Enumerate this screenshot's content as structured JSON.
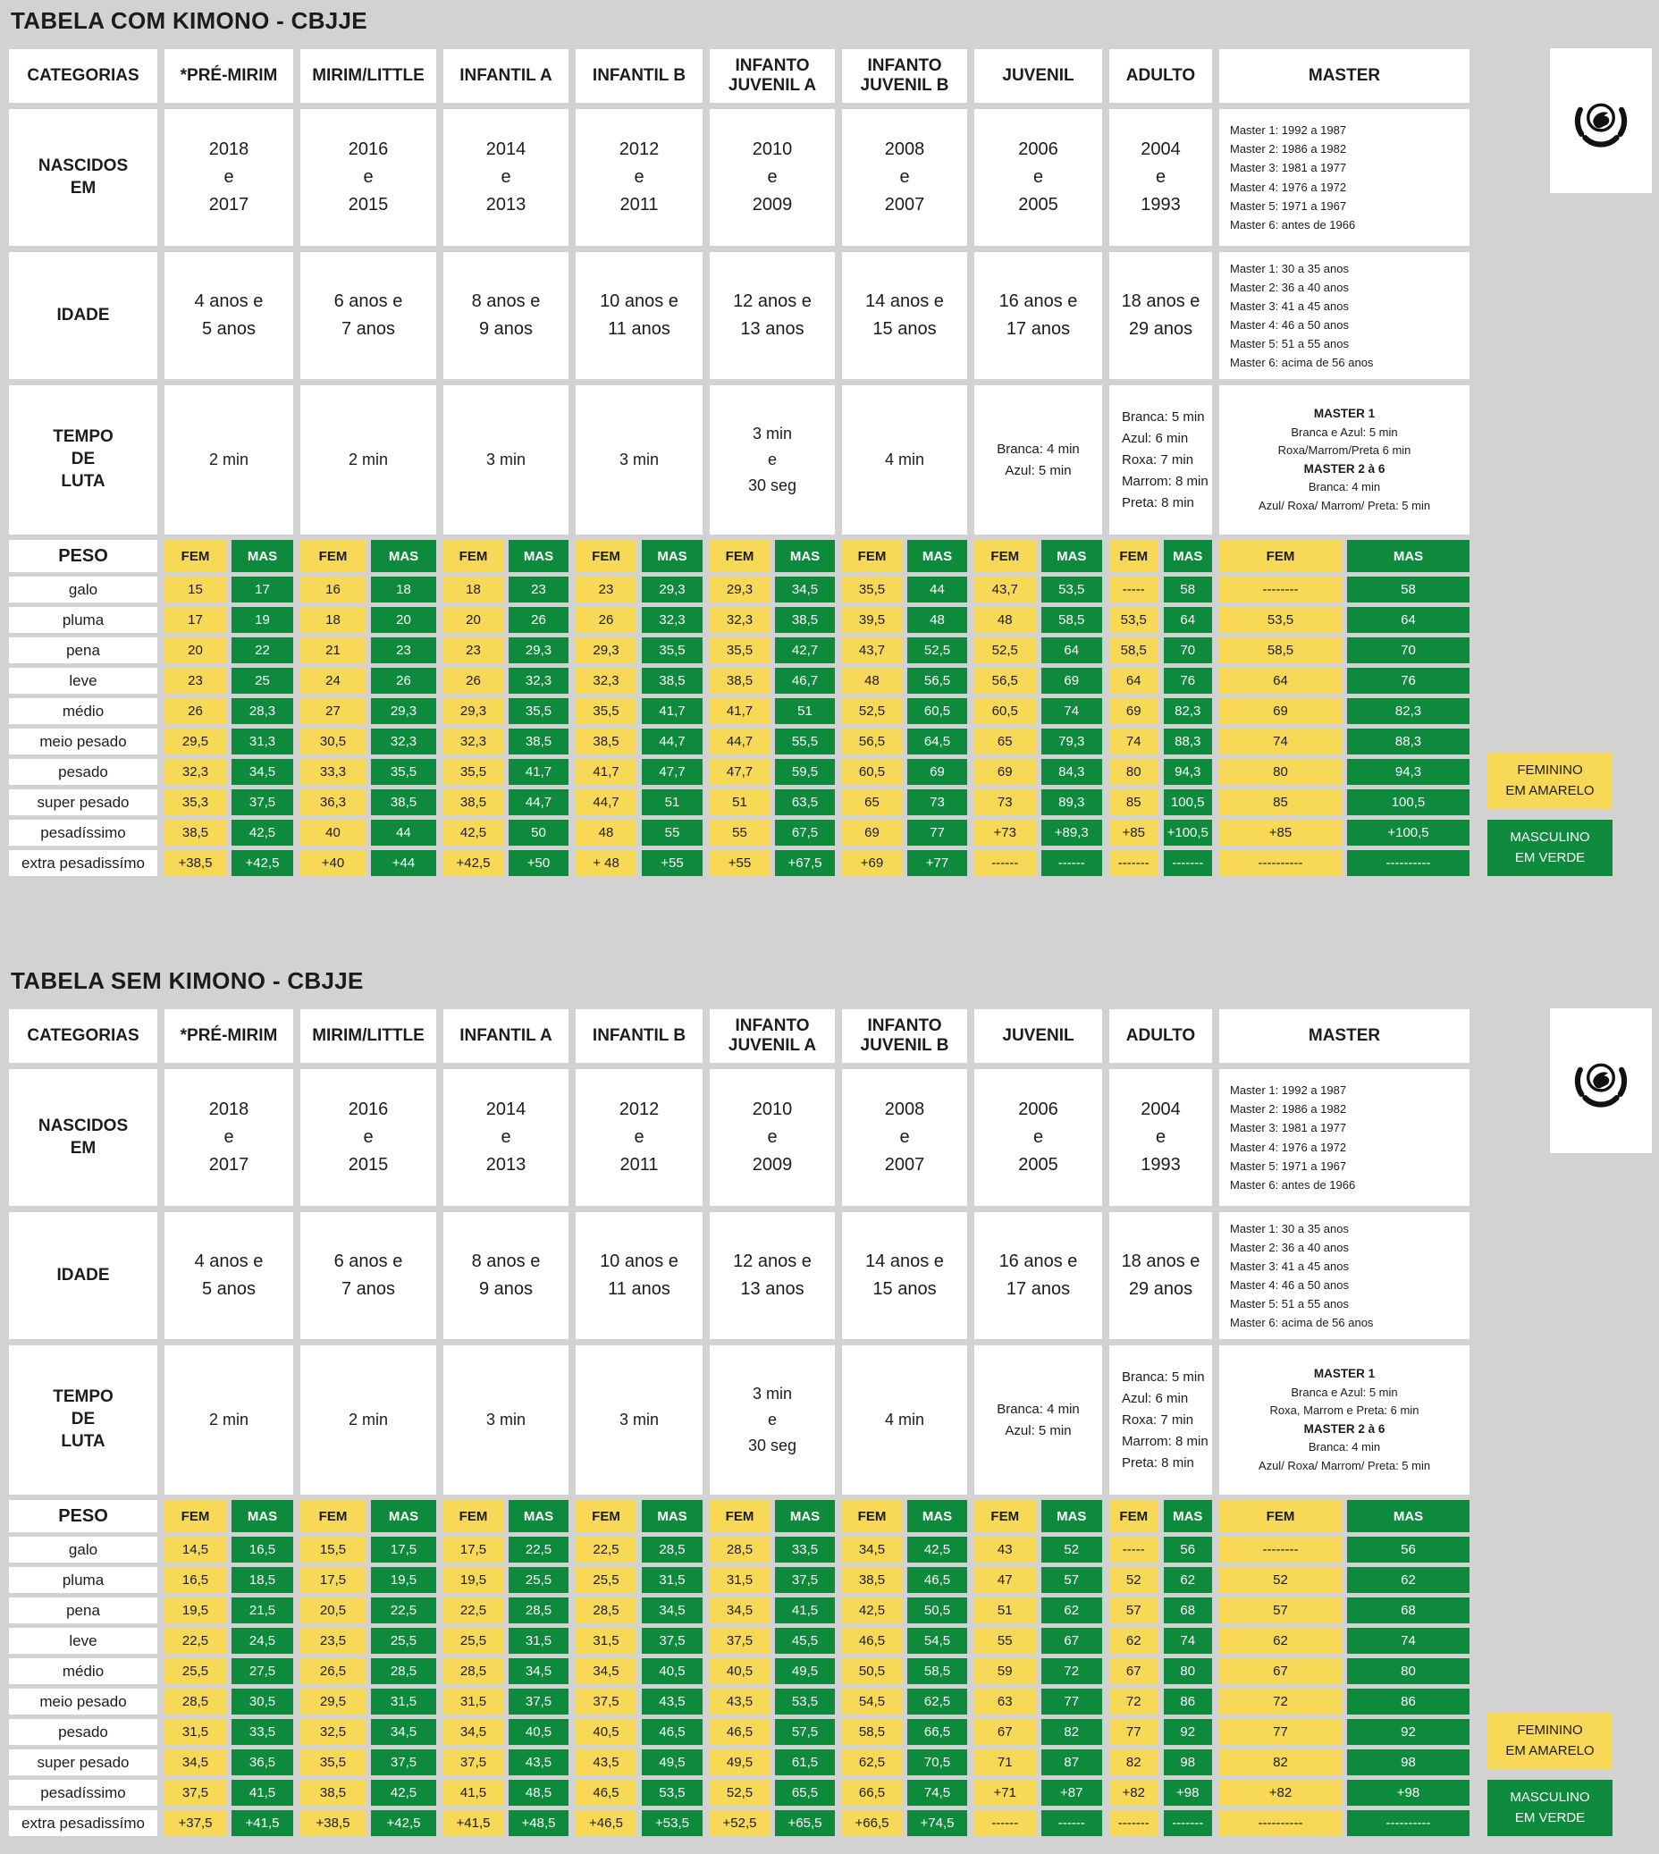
{
  "colors": {
    "background": "#d2d2d2",
    "feminine_yellow": "#f7d957",
    "masculine_green": "#0e8a3c",
    "text": "#1c1c1c",
    "cell_white": "#ffffff"
  },
  "legend": {
    "fem": [
      "FEMININO",
      "EM AMARELO"
    ],
    "mas": [
      "MASCULINO",
      "EM VERDE"
    ]
  },
  "tables": [
    {
      "title": "TABELA COM KIMONO - CBJJE",
      "corner_label": "CATEGORIAS",
      "categories": [
        "*PRÉ-MIRIM",
        "MIRIM/LITTLE",
        "INFANTIL A",
        "INFANTIL B",
        "INFANTO\nJUVENIL A",
        "INFANTO\nJUVENIL B",
        "JUVENIL",
        "ADULTO",
        "MASTER"
      ],
      "info_rows": [
        {
          "label": "NASCIDOS\nEM",
          "values": [
            "2018\ne\n2017",
            "2016\ne\n2015",
            "2014\ne\n2013",
            "2012\ne\n2011",
            "2010\ne\n2009",
            "2008\ne\n2007",
            "2006\ne\n2005",
            "2004\ne\n1993",
            "Master 1: 1992 a 1987\nMaster 2: 1986 a 1982\nMaster 3: 1981 a 1977\nMaster 4: 1976 a 1972\nMaster 5: 1971 a 1967\nMaster 6: antes de 1966"
          ]
        },
        {
          "label": "IDADE",
          "values": [
            "4 anos  e\n5 anos",
            "6 anos e\n7 anos",
            "8 anos e\n9 anos",
            "10 anos e\n11 anos",
            "12 anos e\n13 anos",
            "14 anos e\n15 anos",
            "16 anos e\n17 anos",
            "18 anos e\n29 anos",
            "Master 1: 30 a 35 anos\nMaster 2: 36 a 40 anos\nMaster 3: 41 a 45 anos\nMaster 4: 46 a 50 anos\nMaster 5: 51 a 55 anos\nMaster 6: acima de 56 anos"
          ]
        },
        {
          "label": "TEMPO\nDE\nLUTA",
          "values": [
            "2 min",
            "2 min",
            "3 min",
            "3 min",
            "3 min\ne\n30 seg",
            "4 min",
            "Branca: 4 min\nAzul: 5 min",
            "Branca: 5 min\nAzul: 6 min\nRoxa: 7 min\nMarrom: 8 min\nPreta: 8 min",
            {
              "lines": [
                {
                  "t": "MASTER 1",
                  "b": true
                },
                {
                  "t": "Branca e Azul: 5 min"
                },
                {
                  "t": "Roxa/Marrom/Preta 6 min"
                },
                {
                  "t": "MASTER 2 à 6",
                  "b": true
                },
                {
                  "t": "Branca: 4 min"
                },
                {
                  "t": "Azul/ Roxa/ Marrom/ Preta: 5 min"
                }
              ]
            }
          ]
        }
      ],
      "peso_label": "PESO",
      "fem_header": "FEM",
      "mas_header": "MAS",
      "weight_rows": [
        {
          "label": "galo",
          "pairs": [
            [
              "15",
              "17"
            ],
            [
              "16",
              "18"
            ],
            [
              "18",
              "23"
            ],
            [
              "23",
              "29,3"
            ],
            [
              "29,3",
              "34,5"
            ],
            [
              "35,5",
              "44"
            ],
            [
              "43,7",
              "53,5"
            ],
            [
              "-----",
              "58"
            ],
            [
              "--------",
              "58"
            ]
          ]
        },
        {
          "label": "pluma",
          "pairs": [
            [
              "17",
              "19"
            ],
            [
              "18",
              "20"
            ],
            [
              "20",
              "26"
            ],
            [
              "26",
              "32,3"
            ],
            [
              "32,3",
              "38,5"
            ],
            [
              "39,5",
              "48"
            ],
            [
              "48",
              "58,5"
            ],
            [
              "53,5",
              "64"
            ],
            [
              "53,5",
              "64"
            ]
          ]
        },
        {
          "label": "pena",
          "pairs": [
            [
              "20",
              "22"
            ],
            [
              "21",
              "23"
            ],
            [
              "23",
              "29,3"
            ],
            [
              "29,3",
              "35,5"
            ],
            [
              "35,5",
              "42,7"
            ],
            [
              "43,7",
              "52,5"
            ],
            [
              "52,5",
              "64"
            ],
            [
              "58,5",
              "70"
            ],
            [
              "58,5",
              "70"
            ]
          ]
        },
        {
          "label": "leve",
          "pairs": [
            [
              "23",
              "25"
            ],
            [
              "24",
              "26"
            ],
            [
              "26",
              "32,3"
            ],
            [
              "32,3",
              "38,5"
            ],
            [
              "38,5",
              "46,7"
            ],
            [
              "48",
              "56,5"
            ],
            [
              "56,5",
              "69"
            ],
            [
              "64",
              "76"
            ],
            [
              "64",
              "76"
            ]
          ]
        },
        {
          "label": "médio",
          "pairs": [
            [
              "26",
              "28,3"
            ],
            [
              "27",
              "29,3"
            ],
            [
              "29,3",
              "35,5"
            ],
            [
              "35,5",
              "41,7"
            ],
            [
              "41,7",
              "51"
            ],
            [
              "52,5",
              "60,5"
            ],
            [
              "60,5",
              "74"
            ],
            [
              "69",
              "82,3"
            ],
            [
              "69",
              "82,3"
            ]
          ]
        },
        {
          "label": "meio pesado",
          "pairs": [
            [
              "29,5",
              "31,3"
            ],
            [
              "30,5",
              "32,3"
            ],
            [
              "32,3",
              "38,5"
            ],
            [
              "38,5",
              "44,7"
            ],
            [
              "44,7",
              "55,5"
            ],
            [
              "56,5",
              "64,5"
            ],
            [
              "65",
              "79,3"
            ],
            [
              "74",
              "88,3"
            ],
            [
              "74",
              "88,3"
            ]
          ]
        },
        {
          "label": "pesado",
          "pairs": [
            [
              "32,3",
              "34,5"
            ],
            [
              "33,3",
              "35,5"
            ],
            [
              "35,5",
              "41,7"
            ],
            [
              "41,7",
              "47,7"
            ],
            [
              "47,7",
              "59,5"
            ],
            [
              "60,5",
              "69"
            ],
            [
              "69",
              "84,3"
            ],
            [
              "80",
              "94,3"
            ],
            [
              "80",
              "94,3"
            ]
          ]
        },
        {
          "label": "super pesado",
          "pairs": [
            [
              "35,3",
              "37,5"
            ],
            [
              "36,3",
              "38,5"
            ],
            [
              "38,5",
              "44,7"
            ],
            [
              "44,7",
              "51"
            ],
            [
              "51",
              "63,5"
            ],
            [
              "65",
              "73"
            ],
            [
              "73",
              "89,3"
            ],
            [
              "85",
              "100,5"
            ],
            [
              "85",
              "100,5"
            ]
          ]
        },
        {
          "label": "pesadíssimo",
          "pairs": [
            [
              "38,5",
              "42,5"
            ],
            [
              "40",
              "44"
            ],
            [
              "42,5",
              "50"
            ],
            [
              "48",
              "55"
            ],
            [
              "55",
              "67,5"
            ],
            [
              "69",
              "77"
            ],
            [
              "+73",
              "+89,3"
            ],
            [
              "+85",
              "+100,5"
            ],
            [
              "+85",
              "+100,5"
            ]
          ]
        },
        {
          "label": "extra pesadissímo",
          "pairs": [
            [
              "+38,5",
              "+42,5"
            ],
            [
              "+40",
              "+44"
            ],
            [
              "+42,5",
              "+50"
            ],
            [
              "+ 48",
              "+55"
            ],
            [
              "+55",
              "+67,5"
            ],
            [
              "+69",
              "+77"
            ],
            [
              "------",
              "------"
            ],
            [
              "-------",
              "-------"
            ],
            [
              "----------",
              "----------"
            ]
          ]
        }
      ]
    },
    {
      "title": "TABELA SEM KIMONO - CBJJE",
      "corner_label": "CATEGORIAS",
      "categories": [
        "*PRÉ-MIRIM",
        "MIRIM/LITTLE",
        "INFANTIL A",
        "INFANTIL B",
        "INFANTO\nJUVENIL A",
        "INFANTO\nJUVENIL B",
        "JUVENIL",
        "ADULTO",
        "MASTER"
      ],
      "info_rows": [
        {
          "label": "NASCIDOS\nEM",
          "values": [
            "2018\ne\n2017",
            "2016\ne\n2015",
            "2014\ne\n2013",
            "2012\ne\n2011",
            "2010\ne\n2009",
            "2008\ne\n2007",
            "2006\ne\n2005",
            "2004\ne\n1993",
            "Master 1: 1992 a 1987\nMaster 2: 1986 a 1982\nMaster 3: 1981 a 1977\nMaster 4: 1976 a 1972\nMaster 5: 1971 a 1967\nMaster 6: antes de 1966"
          ]
        },
        {
          "label": "IDADE",
          "values": [
            "4 anos  e\n5 anos",
            "6 anos e\n7 anos",
            "8 anos e\n9 anos",
            "10 anos e\n11 anos",
            "12 anos e\n13 anos",
            "14 anos e\n15 anos",
            "16 anos e\n17 anos",
            "18 anos e\n29 anos",
            "Master 1: 30 a 35 anos\nMaster 2: 36 a 40 anos\nMaster 3: 41 a 45 anos\nMaster 4: 46 a 50 anos\nMaster 5: 51 a 55 anos\nMaster 6: acima de 56 anos"
          ]
        },
        {
          "label": "TEMPO\nDE\nLUTA",
          "values": [
            "2 min",
            "2 min",
            "3 min",
            "3 min",
            "3 min\ne\n30 seg",
            "4 min",
            "Branca: 4 min\nAzul: 5 min",
            "Branca: 5 min\nAzul: 6 min\nRoxa: 7 min\nMarrom: 8 min\nPreta: 8 min",
            {
              "lines": [
                {
                  "t": "MASTER 1",
                  "b": true
                },
                {
                  "t": "Branca e Azul: 5 min"
                },
                {
                  "t": "Roxa, Marrom e Preta: 6 min"
                },
                {
                  "t": "MASTER 2 à 6",
                  "b": true
                },
                {
                  "t": "Branca: 4 min"
                },
                {
                  "t": "Azul/ Roxa/ Marrom/ Preta: 5 min"
                }
              ]
            }
          ]
        }
      ],
      "peso_label": "PESO",
      "fem_header": "FEM",
      "mas_header": "MAS",
      "weight_rows": [
        {
          "label": "galo",
          "pairs": [
            [
              "14,5",
              "16,5"
            ],
            [
              "15,5",
              "17,5"
            ],
            [
              "17,5",
              "22,5"
            ],
            [
              "22,5",
              "28,5"
            ],
            [
              "28,5",
              "33,5"
            ],
            [
              "34,5",
              "42,5"
            ],
            [
              "43",
              "52"
            ],
            [
              "-----",
              "56"
            ],
            [
              "--------",
              "56"
            ]
          ]
        },
        {
          "label": "pluma",
          "pairs": [
            [
              "16,5",
              "18,5"
            ],
            [
              "17,5",
              "19,5"
            ],
            [
              "19,5",
              "25,5"
            ],
            [
              "25,5",
              "31,5"
            ],
            [
              "31,5",
              "37,5"
            ],
            [
              "38,5",
              "46,5"
            ],
            [
              "47",
              "57"
            ],
            [
              "52",
              "62"
            ],
            [
              "52",
              "62"
            ]
          ]
        },
        {
          "label": "pena",
          "pairs": [
            [
              "19,5",
              "21,5"
            ],
            [
              "20,5",
              "22,5"
            ],
            [
              "22,5",
              "28,5"
            ],
            [
              "28,5",
              "34,5"
            ],
            [
              "34,5",
              "41,5"
            ],
            [
              "42,5",
              "50,5"
            ],
            [
              "51",
              "62"
            ],
            [
              "57",
              "68"
            ],
            [
              "57",
              "68"
            ]
          ]
        },
        {
          "label": "leve",
          "pairs": [
            [
              "22,5",
              "24,5"
            ],
            [
              "23,5",
              "25,5"
            ],
            [
              "25,5",
              "31,5"
            ],
            [
              "31,5",
              "37,5"
            ],
            [
              "37,5",
              "45,5"
            ],
            [
              "46,5",
              "54,5"
            ],
            [
              "55",
              "67"
            ],
            [
              "62",
              "74"
            ],
            [
              "62",
              "74"
            ]
          ]
        },
        {
          "label": "médio",
          "pairs": [
            [
              "25,5",
              "27,5"
            ],
            [
              "26,5",
              "28,5"
            ],
            [
              "28,5",
              "34,5"
            ],
            [
              "34,5",
              "40,5"
            ],
            [
              "40,5",
              "49,5"
            ],
            [
              "50,5",
              "58,5"
            ],
            [
              "59",
              "72"
            ],
            [
              "67",
              "80"
            ],
            [
              "67",
              "80"
            ]
          ]
        },
        {
          "label": "meio pesado",
          "pairs": [
            [
              "28,5",
              "30,5"
            ],
            [
              "29,5",
              "31,5"
            ],
            [
              "31,5",
              "37,5"
            ],
            [
              "37,5",
              "43,5"
            ],
            [
              "43,5",
              "53,5"
            ],
            [
              "54,5",
              "62,5"
            ],
            [
              "63",
              "77"
            ],
            [
              "72",
              "86"
            ],
            [
              "72",
              "86"
            ]
          ]
        },
        {
          "label": "pesado",
          "pairs": [
            [
              "31,5",
              "33,5"
            ],
            [
              "32,5",
              "34,5"
            ],
            [
              "34,5",
              "40,5"
            ],
            [
              "40,5",
              "46,5"
            ],
            [
              "46,5",
              "57,5"
            ],
            [
              "58,5",
              "66,5"
            ],
            [
              "67",
              "82"
            ],
            [
              "77",
              "92"
            ],
            [
              "77",
              "92"
            ]
          ]
        },
        {
          "label": "super pesado",
          "pairs": [
            [
              "34,5",
              "36,5"
            ],
            [
              "35,5",
              "37,5"
            ],
            [
              "37,5",
              "43,5"
            ],
            [
              "43,5",
              "49,5"
            ],
            [
              "49,5",
              "61,5"
            ],
            [
              "62,5",
              "70,5"
            ],
            [
              "71",
              "87"
            ],
            [
              "82",
              "98"
            ],
            [
              "82",
              "98"
            ]
          ]
        },
        {
          "label": "pesadíssimo",
          "pairs": [
            [
              "37,5",
              "41,5"
            ],
            [
              "38,5",
              "42,5"
            ],
            [
              "41,5",
              "48,5"
            ],
            [
              "46,5",
              "53,5"
            ],
            [
              "52,5",
              "65,5"
            ],
            [
              "66,5",
              "74,5"
            ],
            [
              "+71",
              "+87"
            ],
            [
              "+82",
              "+98"
            ],
            [
              "+82",
              "+98"
            ]
          ]
        },
        {
          "label": "extra pesadissímo",
          "pairs": [
            [
              "+37,5",
              "+41,5"
            ],
            [
              "+38,5",
              "+42,5"
            ],
            [
              "+41,5",
              "+48,5"
            ],
            [
              "+46,5",
              "+53,5"
            ],
            [
              "+52,5",
              "+65,5"
            ],
            [
              "+66,5",
              "+74,5"
            ],
            [
              "------",
              "------"
            ],
            [
              "-------",
              "-------"
            ],
            [
              "----------",
              "----------"
            ]
          ]
        }
      ]
    }
  ]
}
